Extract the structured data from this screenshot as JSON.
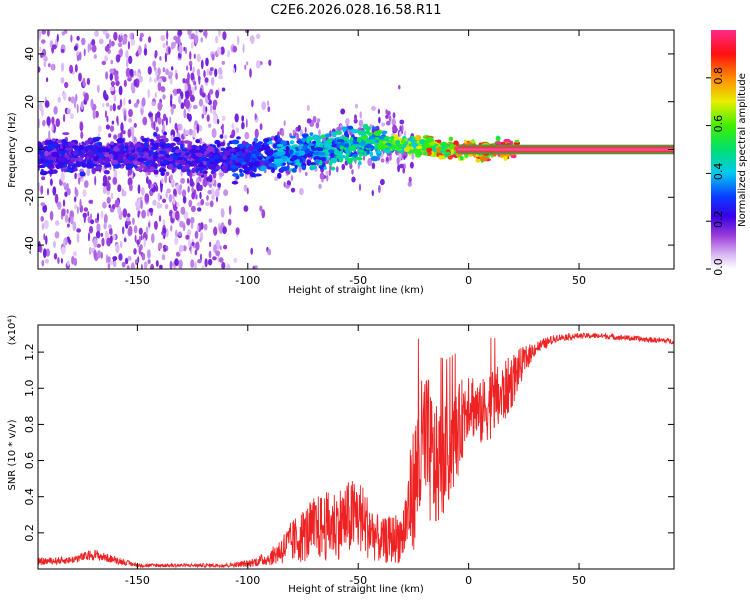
{
  "title": "C2E6.2026.028.16.58.R11",
  "chart_data": [
    {
      "type": "heatmap",
      "title": "C2E6.2026.028.16.58.R11",
      "xlabel": "Height of straight line (km)",
      "ylabel": "Frequency (Hz)",
      "xlim": [
        -195,
        93
      ],
      "ylim": [
        -50,
        50
      ],
      "xticks": [
        -150,
        -100,
        -50,
        0,
        50
      ],
      "yticks": [
        -40,
        -20,
        0,
        20,
        40
      ],
      "colorbar": {
        "label": "Normalized spectral amplitude",
        "range": [
          0,
          1
        ],
        "ticks": [
          0.0,
          0.2,
          0.4,
          0.6,
          0.8
        ],
        "tick_labels": [
          "0.0",
          "0.2",
          "0.4",
          "0.6",
          "0.8"
        ]
      },
      "ridge": {
        "x": [
          -195,
          -150,
          -120,
          -100,
          -80,
          -60,
          -45,
          -30,
          -20,
          -10,
          0,
          7,
          12,
          20,
          93
        ],
        "frequency": [
          -3,
          -2,
          -3,
          -4,
          -2,
          1,
          3,
          2,
          1,
          0,
          0,
          -1,
          0,
          0,
          0
        ],
        "amplitude": [
          0.25,
          0.25,
          0.25,
          0.3,
          0.4,
          0.45,
          0.5,
          0.65,
          0.75,
          0.85,
          0.9,
          0.92,
          0.95,
          0.98,
          1.0
        ]
      }
    },
    {
      "type": "line",
      "xlabel": "Height of straight line (km)",
      "ylabel": "SNR (10 * v/v)",
      "y_multiplier": "(x10⁴)",
      "xlim": [
        -195,
        93
      ],
      "ylim": [
        0,
        1.35
      ],
      "xticks": [
        -150,
        -100,
        -50,
        0,
        50
      ],
      "yticks": [
        0.2,
        0.4,
        0.6,
        0.8,
        1.0,
        1.2
      ],
      "ytick_labels": [
        "0.2",
        "0.4",
        "0.6",
        "0.8",
        "1.0",
        "1.2"
      ],
      "color": "#ee2222",
      "series": [
        {
          "name": "SNR",
          "x": [
            -195,
            -180,
            -170,
            -160,
            -150,
            -130,
            -110,
            -100,
            -90,
            -80,
            -70,
            -60,
            -50,
            -40,
            -30,
            -25,
            -20,
            -15,
            -10,
            -5,
            0,
            5,
            10,
            15,
            20,
            25,
            30,
            40,
            50,
            60,
            70,
            80,
            93
          ],
          "y": [
            0.04,
            0.05,
            0.08,
            0.05,
            0.02,
            0.02,
            0.02,
            0.03,
            0.06,
            0.15,
            0.22,
            0.25,
            0.3,
            0.15,
            0.18,
            0.45,
            0.7,
            0.55,
            0.62,
            0.75,
            0.95,
            0.85,
            0.92,
            0.95,
            1.05,
            1.15,
            1.22,
            1.28,
            1.29,
            1.29,
            1.28,
            1.27,
            1.26
          ],
          "noise": [
            0.02,
            0.02,
            0.03,
            0.02,
            0.01,
            0.01,
            0.01,
            0.02,
            0.04,
            0.12,
            0.18,
            0.2,
            0.22,
            0.12,
            0.15,
            0.35,
            0.45,
            0.35,
            0.3,
            0.25,
            0.2,
            0.18,
            0.2,
            0.18,
            0.15,
            0.08,
            0.04,
            0.02,
            0.015,
            0.015,
            0.015,
            0.015,
            0.015
          ]
        }
      ]
    }
  ]
}
